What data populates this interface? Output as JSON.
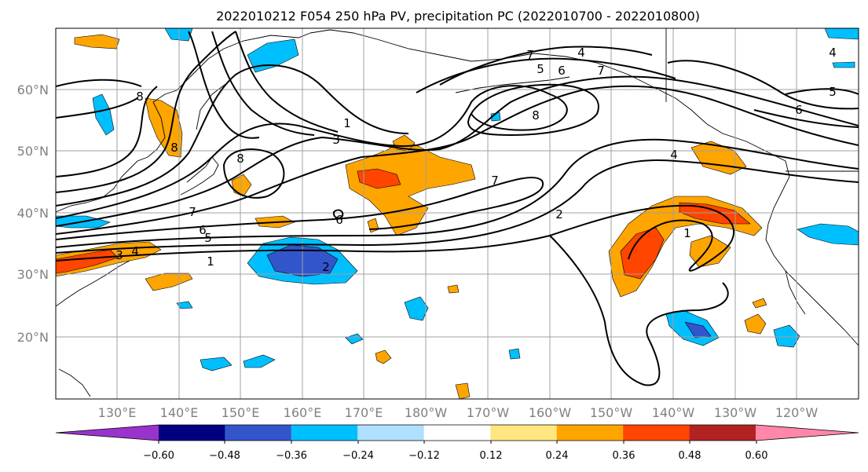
{
  "title": "2022010212 F054 250 hPa PV, precipitation PC (2022010700 - 2022010800)",
  "lat_labels": [
    "60°N",
    "50°N",
    "40°N",
    "30°N",
    "20°N"
  ],
  "lon_labels": [
    "130°E",
    "140°E",
    "150°E",
    "160°E",
    "170°E",
    "180°W",
    "170°W",
    "160°W",
    "150°W",
    "140°W",
    "130°W",
    "120°W"
  ],
  "contour_labels": [
    "8",
    "8",
    "7",
    "6",
    "5",
    "4",
    "3",
    "2",
    "1",
    "1",
    "2",
    "3",
    "4",
    "5",
    "6",
    "7",
    "4",
    "6",
    "7",
    "8",
    "7",
    "8",
    "6",
    "1",
    "4",
    "5"
  ],
  "colorbar": {
    "ticks": [
      "−0.60",
      "−0.48",
      "−0.36",
      "−0.24",
      "−0.12",
      "0.12",
      "0.24",
      "0.36",
      "0.48",
      "0.60"
    ],
    "colors": [
      "#9933cc",
      "#000080",
      "#3355cc",
      "#00bfff",
      "#b0e0ff",
      "#ffffff",
      "#ffe680",
      "#ffa500",
      "#ff4500",
      "#b22222",
      "#ff88aa"
    ]
  }
}
